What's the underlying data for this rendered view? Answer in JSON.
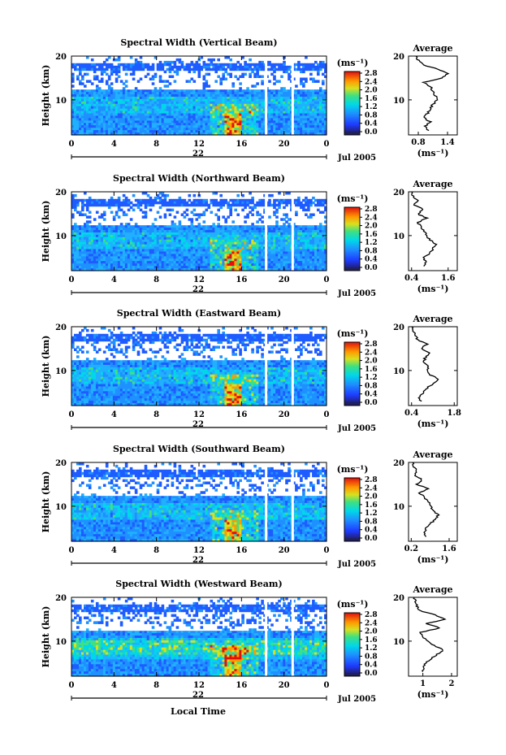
{
  "figure": {
    "xlabel_bottom": "Local Time",
    "date_label": "Jul 2005",
    "day_label": "22",
    "unit_label": "(ms⁻¹)",
    "ylabel": "Height (km)",
    "avg_title": "Average",
    "avg_xlabel": "(ms⁻¹)"
  },
  "chart_data": [
    {
      "type": "heatmap",
      "title": "Spectral Width (Vertical Beam)",
      "x_ticks": [
        "0",
        "4",
        "8",
        "12",
        "16",
        "20",
        "0"
      ],
      "y_ticks": [
        "20",
        "10"
      ],
      "xlim": [
        0,
        24
      ],
      "ylim": [
        2,
        20
      ],
      "colorbar_ticks": [
        "2.8",
        "2.4",
        "2.0",
        "1.6",
        "1.2",
        "0.8",
        "0.4",
        "0.0"
      ],
      "colorbar_range": [
        0,
        2.8
      ],
      "average": {
        "x_ticks": [
          "0.8",
          "1.4"
        ],
        "xlim": [
          0.6,
          1.6
        ],
        "y_ticks": [
          "20",
          "10"
        ],
        "profile": [
          [
            1.0,
            3
          ],
          [
            0.95,
            4
          ],
          [
            1.05,
            5
          ],
          [
            0.9,
            6
          ],
          [
            1.0,
            7
          ],
          [
            1.05,
            8
          ],
          [
            1.1,
            9
          ],
          [
            1.2,
            10
          ],
          [
            1.15,
            11
          ],
          [
            1.1,
            12
          ],
          [
            1.05,
            13
          ],
          [
            0.9,
            14
          ],
          [
            1.3,
            15
          ],
          [
            1.4,
            16
          ],
          [
            1.2,
            17
          ],
          [
            0.9,
            18
          ],
          [
            0.8,
            19
          ],
          [
            0.75,
            20
          ]
        ]
      }
    },
    {
      "type": "heatmap",
      "title": "Spectral Width (Northward Beam)",
      "x_ticks": [
        "0",
        "4",
        "8",
        "12",
        "16",
        "20",
        "0"
      ],
      "y_ticks": [
        "20",
        "10"
      ],
      "xlim": [
        0,
        24
      ],
      "ylim": [
        2,
        20
      ],
      "colorbar_ticks": [
        "2.8",
        "2.4",
        "2.0",
        "1.6",
        "1.2",
        "0.8",
        "0.4",
        "0.0"
      ],
      "colorbar_range": [
        0,
        2.8
      ],
      "average": {
        "x_ticks": [
          "0.4",
          "1.6"
        ],
        "xlim": [
          0.3,
          1.9
        ],
        "y_ticks": [
          "20",
          "10"
        ],
        "profile": [
          [
            0.8,
            3
          ],
          [
            0.85,
            4
          ],
          [
            0.8,
            5
          ],
          [
            1.0,
            6
          ],
          [
            1.1,
            7
          ],
          [
            1.2,
            8
          ],
          [
            1.0,
            9
          ],
          [
            0.9,
            10
          ],
          [
            0.8,
            11
          ],
          [
            0.7,
            12
          ],
          [
            0.6,
            13
          ],
          [
            0.9,
            14
          ],
          [
            0.6,
            15
          ],
          [
            0.8,
            16
          ],
          [
            0.5,
            17
          ],
          [
            0.6,
            18
          ],
          [
            0.45,
            19
          ],
          [
            0.4,
            20
          ]
        ]
      }
    },
    {
      "type": "heatmap",
      "title": "Spectral Width (Eastward Beam)",
      "x_ticks": [
        "0",
        "4",
        "8",
        "12",
        "16",
        "20",
        "0"
      ],
      "y_ticks": [
        "20",
        "10"
      ],
      "xlim": [
        0,
        24
      ],
      "ylim": [
        2,
        20
      ],
      "colorbar_ticks": [
        "2.8",
        "2.4",
        "2.0",
        "1.6",
        "1.2",
        "0.8",
        "0.4",
        "0.0"
      ],
      "colorbar_range": [
        0,
        2.8
      ],
      "average": {
        "x_ticks": [
          "0.4",
          "1.8"
        ],
        "xlim": [
          0.3,
          1.9
        ],
        "y_ticks": [
          "20",
          "10"
        ],
        "profile": [
          [
            0.7,
            3
          ],
          [
            0.65,
            4
          ],
          [
            0.8,
            5
          ],
          [
            0.9,
            6
          ],
          [
            1.1,
            7
          ],
          [
            1.3,
            8
          ],
          [
            1.0,
            9
          ],
          [
            0.9,
            10
          ],
          [
            0.95,
            11
          ],
          [
            0.8,
            12
          ],
          [
            0.85,
            13
          ],
          [
            1.0,
            14
          ],
          [
            0.7,
            15
          ],
          [
            0.9,
            16
          ],
          [
            0.6,
            17
          ],
          [
            0.55,
            18
          ],
          [
            0.45,
            19
          ],
          [
            0.4,
            20
          ]
        ]
      }
    },
    {
      "type": "heatmap",
      "title": "Spectral Width (Southward Beam)",
      "x_ticks": [
        "0",
        "4",
        "8",
        "12",
        "16",
        "20",
        "0"
      ],
      "y_ticks": [
        "20",
        "10"
      ],
      "xlim": [
        0,
        24
      ],
      "ylim": [
        2,
        20
      ],
      "colorbar_ticks": [
        "2.8",
        "2.4",
        "2.0",
        "1.6",
        "1.2",
        "0.8",
        "0.4",
        "0.0"
      ],
      "colorbar_range": [
        0,
        2.8
      ],
      "average": {
        "x_ticks": [
          "0.2",
          "1.6"
        ],
        "xlim": [
          0.1,
          1.9
        ],
        "y_ticks": [
          "20",
          "10"
        ],
        "profile": [
          [
            0.7,
            3
          ],
          [
            0.7,
            4
          ],
          [
            0.75,
            5
          ],
          [
            0.9,
            6
          ],
          [
            1.1,
            7
          ],
          [
            1.2,
            8
          ],
          [
            1.0,
            9
          ],
          [
            0.9,
            10
          ],
          [
            0.85,
            11
          ],
          [
            0.7,
            12
          ],
          [
            0.5,
            13
          ],
          [
            0.8,
            14
          ],
          [
            0.4,
            15
          ],
          [
            0.6,
            16
          ],
          [
            0.35,
            17
          ],
          [
            0.4,
            18
          ],
          [
            0.3,
            19
          ],
          [
            0.25,
            20
          ]
        ]
      }
    },
    {
      "type": "heatmap",
      "title": "Spectral Width (Westward Beam)",
      "x_ticks": [
        "0",
        "4",
        "8",
        "12",
        "16",
        "20",
        "0"
      ],
      "y_ticks": [
        "20",
        "10"
      ],
      "xlim": [
        0,
        24
      ],
      "ylim": [
        2,
        20
      ],
      "colorbar_ticks": [
        "2.8",
        "2.4",
        "2.0",
        "1.6",
        "1.2",
        "0.8",
        "0.4",
        "0.0"
      ],
      "colorbar_range": [
        0,
        2.8
      ],
      "average": {
        "x_ticks": [
          "1",
          "2"
        ],
        "xlim": [
          0.5,
          2.2
        ],
        "y_ticks": [
          "20",
          "10"
        ],
        "profile": [
          [
            1.0,
            3
          ],
          [
            1.0,
            4
          ],
          [
            1.1,
            5
          ],
          [
            1.3,
            6
          ],
          [
            1.5,
            7
          ],
          [
            1.7,
            8
          ],
          [
            1.4,
            9
          ],
          [
            1.2,
            10
          ],
          [
            1.0,
            11
          ],
          [
            0.9,
            12
          ],
          [
            1.6,
            13
          ],
          [
            1.1,
            14
          ],
          [
            1.8,
            15
          ],
          [
            1.4,
            16
          ],
          [
            0.9,
            17
          ],
          [
            0.8,
            18
          ],
          [
            0.75,
            19
          ],
          [
            0.7,
            20
          ]
        ]
      }
    }
  ]
}
